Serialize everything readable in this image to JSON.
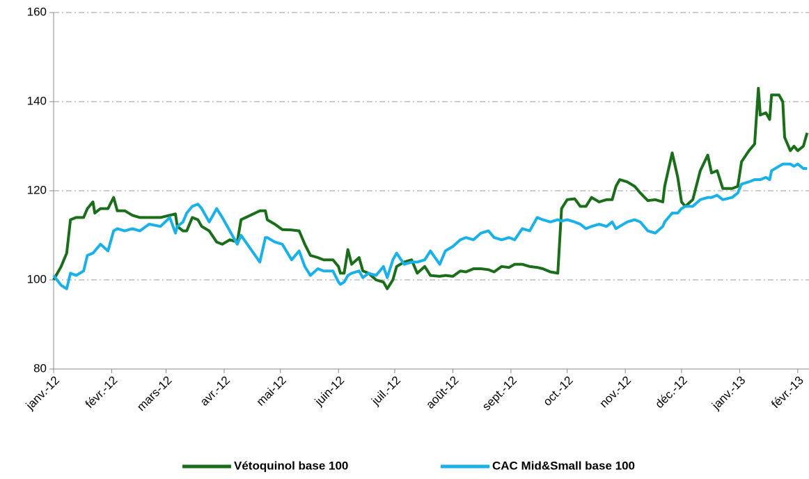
{
  "chart_data": {
    "type": "line",
    "x": [
      0,
      4,
      7,
      9,
      12,
      16,
      18,
      21,
      22,
      25,
      29,
      32,
      34,
      38,
      42,
      46,
      51,
      57,
      62,
      65,
      66,
      69,
      71,
      74,
      77,
      79,
      83,
      87,
      90,
      94,
      98,
      100,
      105,
      110,
      113,
      114,
      118,
      122,
      127,
      131,
      134,
      137,
      141,
      144,
      149,
      152,
      153,
      155,
      157,
      159,
      163,
      165,
      168,
      172,
      176,
      178,
      181,
      183,
      187,
      191,
      194,
      198,
      201,
      206,
      209,
      213,
      217,
      220,
      224,
      228,
      232,
      235,
      239,
      243,
      246,
      250,
      254,
      258,
      261,
      265,
      269,
      271,
      274,
      278,
      281,
      284,
      287,
      291,
      295,
      298,
      300,
      302,
      306,
      310,
      313,
      317,
      321,
      325,
      326,
      330,
      333,
      335,
      337,
      341,
      345,
      349,
      351,
      354,
      357,
      362,
      365,
      367,
      371,
      374,
      376,
      377,
      380,
      382,
      383,
      387,
      389,
      390,
      393,
      395,
      397,
      400,
      402
    ],
    "series": [
      {
        "name": "Vétoquinol base 100",
        "color": "#1a6e1a",
        "values": [
          100,
          103,
          106,
          113.5,
          114,
          114,
          116,
          117.5,
          115,
          116,
          116,
          118.5,
          115.5,
          115.5,
          114.5,
          114,
          114,
          114,
          114.5,
          114.8,
          112,
          111,
          111,
          114,
          113.5,
          112,
          111,
          108.5,
          108,
          109,
          108.5,
          113.5,
          114.5,
          115.5,
          115.5,
          113.5,
          112.5,
          111.3,
          111.2,
          111,
          108,
          105.5,
          105,
          104.5,
          104.5,
          103,
          101.5,
          101.5,
          106.8,
          103.5,
          105,
          102,
          101.5,
          100,
          99.5,
          98,
          100,
          103,
          104,
          104.5,
          101.5,
          103,
          101,
          100.8,
          101,
          100.8,
          102,
          101.8,
          102.5,
          102.5,
          102.3,
          101.8,
          103,
          102.8,
          103.5,
          103.5,
          103,
          102.8,
          102.5,
          101.8,
          101.5,
          116,
          118,
          118.2,
          116.5,
          116.5,
          118.5,
          117.5,
          118,
          118,
          121,
          122.5,
          122,
          121,
          119.5,
          117.8,
          118,
          117.5,
          121,
          128.5,
          123,
          117.5,
          116.5,
          118,
          124.5,
          128,
          124,
          124.5,
          120.5,
          120.5,
          121,
          126.5,
          129,
          130.5,
          143,
          137,
          137.5,
          136,
          141.5,
          141.5,
          140,
          132,
          129,
          130,
          129,
          130,
          133
        ]
      },
      {
        "name": "CAC Mid&Small base 100",
        "color": "#1ab0e8",
        "values": [
          101,
          98.8,
          98,
          101.5,
          101,
          102,
          105.5,
          106,
          106.5,
          108,
          106.5,
          111,
          111.5,
          111,
          111.5,
          111,
          112.5,
          112,
          114,
          110.5,
          112,
          113,
          115,
          116.5,
          117,
          116,
          113,
          116,
          114,
          111,
          108,
          110,
          107,
          104,
          109.5,
          109.5,
          108.5,
          108,
          104.5,
          106.5,
          103,
          101,
          102.5,
          102,
          102,
          99.5,
          99,
          99.5,
          101,
          101.5,
          102,
          100.5,
          101.5,
          101,
          103,
          100.5,
          104.5,
          106,
          103.5,
          104,
          104,
          104.5,
          106.5,
          103.5,
          106.5,
          107.5,
          109,
          109.5,
          109,
          110.5,
          111,
          109.5,
          109,
          109.5,
          109,
          111.5,
          111,
          114,
          113.5,
          113,
          113.5,
          113.2,
          113.5,
          113,
          112.5,
          111.5,
          112,
          112.5,
          112,
          113,
          111.5,
          112,
          113,
          113.5,
          113,
          111,
          110.5,
          112,
          113,
          115,
          115,
          116,
          116.5,
          116.5,
          118,
          118.5,
          118.5,
          119,
          118,
          118.5,
          119.5,
          121.5,
          122,
          122.5,
          122.5,
          122.5,
          123,
          122.5,
          124.5,
          125.5,
          126,
          126,
          126,
          125.5,
          126,
          125,
          125
        ]
      }
    ],
    "xlim": [
      0,
      403
    ],
    "xticks": [
      {
        "value": 0,
        "label": "janv.-12"
      },
      {
        "value": 31,
        "label": "févr.-12"
      },
      {
        "value": 60,
        "label": "mars-12"
      },
      {
        "value": 91,
        "label": "avr.-12"
      },
      {
        "value": 121,
        "label": "mai-12"
      },
      {
        "value": 152,
        "label": "juin-12"
      },
      {
        "value": 182,
        "label": "juil.-12"
      },
      {
        "value": 213,
        "label": "août-12"
      },
      {
        "value": 244,
        "label": "sept.-12"
      },
      {
        "value": 274,
        "label": "oct.-12"
      },
      {
        "value": 305,
        "label": "nov.-12"
      },
      {
        "value": 335,
        "label": "déc.-12"
      },
      {
        "value": 366,
        "label": "janv.-13"
      },
      {
        "value": 397,
        "label": "févr.-13"
      }
    ],
    "ylim": [
      80,
      160
    ],
    "yticks": [
      80,
      100,
      120,
      140,
      160
    ],
    "grid": true,
    "legend": "bottom"
  }
}
